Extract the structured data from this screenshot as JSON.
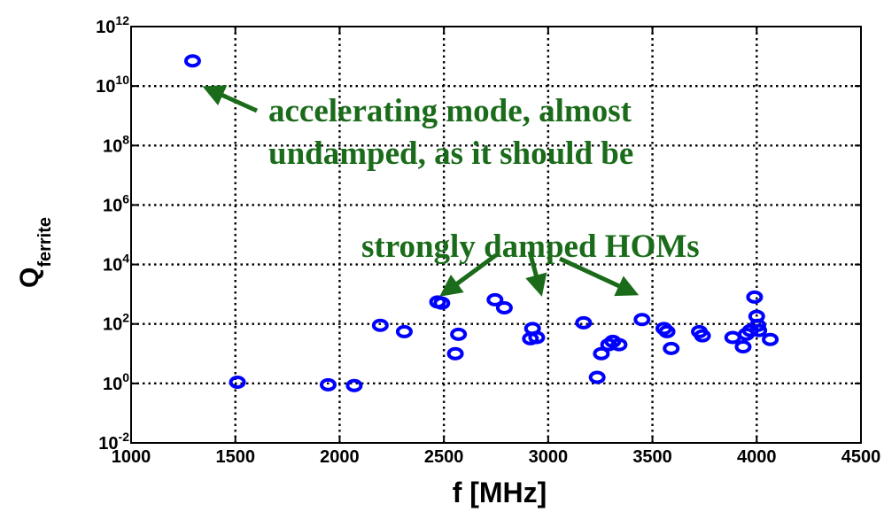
{
  "chart_data": {
    "type": "scatter",
    "xlabel": "f [MHz]",
    "ylabel": {
      "base": "Q",
      "subscript": "ferrite"
    },
    "xlim": [
      1000,
      4500
    ],
    "ylim_log10": [
      -2,
      12
    ],
    "y_scale": "log",
    "grid": true,
    "x_ticks": [
      "1000",
      "1500",
      "2000",
      "2500",
      "3000",
      "3500",
      "4000",
      "4500"
    ],
    "y_ticks": [
      {
        "base": "10",
        "exp": "-2"
      },
      {
        "base": "10",
        "exp": "0"
      },
      {
        "base": "10",
        "exp": "2"
      },
      {
        "base": "10",
        "exp": "4"
      },
      {
        "base": "10",
        "exp": "6"
      },
      {
        "base": "10",
        "exp": "8"
      },
      {
        "base": "10",
        "exp": "10"
      },
      {
        "base": "10",
        "exp": "12"
      }
    ],
    "marker_color": "#0000ff",
    "annotation_color": "#1a6b1a",
    "points": [
      {
        "x": 1295,
        "y": 70000000000.0
      },
      {
        "x": 1510,
        "y": 1.1
      },
      {
        "x": 1945,
        "y": 0.9
      },
      {
        "x": 2070,
        "y": 0.85
      },
      {
        "x": 2195,
        "y": 90
      },
      {
        "x": 2310,
        "y": 55
      },
      {
        "x": 2470,
        "y": 550
      },
      {
        "x": 2490,
        "y": 500
      },
      {
        "x": 2555,
        "y": 10
      },
      {
        "x": 2570,
        "y": 45
      },
      {
        "x": 2745,
        "y": 650
      },
      {
        "x": 2790,
        "y": 350
      },
      {
        "x": 2915,
        "y": 32
      },
      {
        "x": 2925,
        "y": 70
      },
      {
        "x": 2945,
        "y": 35
      },
      {
        "x": 3170,
        "y": 110
      },
      {
        "x": 3235,
        "y": 1.6
      },
      {
        "x": 3255,
        "y": 10
      },
      {
        "x": 3290,
        "y": 20
      },
      {
        "x": 3310,
        "y": 26
      },
      {
        "x": 3340,
        "y": 20
      },
      {
        "x": 3450,
        "y": 140
      },
      {
        "x": 3555,
        "y": 70
      },
      {
        "x": 3570,
        "y": 55
      },
      {
        "x": 3590,
        "y": 15
      },
      {
        "x": 3725,
        "y": 55
      },
      {
        "x": 3740,
        "y": 40
      },
      {
        "x": 3885,
        "y": 35
      },
      {
        "x": 3935,
        "y": 17
      },
      {
        "x": 3950,
        "y": 45
      },
      {
        "x": 3970,
        "y": 60
      },
      {
        "x": 3990,
        "y": 800
      },
      {
        "x": 4000,
        "y": 180
      },
      {
        "x": 4005,
        "y": 90
      },
      {
        "x": 4010,
        "y": 60
      },
      {
        "x": 4065,
        "y": 30
      }
    ],
    "annotations": [
      {
        "lines": [
          "accelerating mode, almost",
          "undamped, as it should be"
        ],
        "arrows_to": [
          {
            "x": 1390,
            "y": 10000000000.0
          }
        ]
      },
      {
        "lines": [
          "strongly damped HOMs"
        ],
        "arrows_to": [
          {
            "x": 2510,
            "y": 1200
          },
          {
            "x": 2960,
            "y": 1500
          },
          {
            "x": 3400,
            "y": 1200
          }
        ]
      }
    ]
  }
}
